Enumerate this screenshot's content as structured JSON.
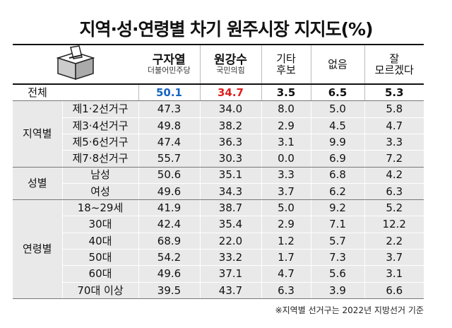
{
  "title": "지역·성·연령별 차기 원주시장 지지도(%)",
  "columns": [
    {
      "name": "구자열",
      "party": "더불어민주당"
    },
    {
      "name": "원강수",
      "party": "국민의힘"
    },
    {
      "lines": [
        "기타",
        "후보"
      ]
    },
    {
      "lines": [
        "없음"
      ]
    },
    {
      "lines": [
        "잘",
        "모르겠다"
      ]
    }
  ],
  "total": {
    "label": "전체",
    "values": [
      "50.1",
      "34.7",
      "3.5",
      "6.5",
      "5.3"
    ]
  },
  "groups": [
    {
      "label": "지역별",
      "rows": [
        {
          "label": "제1·2선거구",
          "values": [
            "47.3",
            "34.0",
            "8.0",
            "5.0",
            "5.8"
          ]
        },
        {
          "label": "제3·4선거구",
          "values": [
            "49.8",
            "38.2",
            "2.9",
            "4.5",
            "4.7"
          ]
        },
        {
          "label": "제5·6선거구",
          "values": [
            "47.4",
            "36.3",
            "3.1",
            "9.9",
            "3.3"
          ]
        },
        {
          "label": "제7·8선거구",
          "values": [
            "55.7",
            "30.3",
            "0.0",
            "6.9",
            "7.2"
          ]
        }
      ]
    },
    {
      "label": "성별",
      "rows": [
        {
          "label": "남성",
          "values": [
            "50.6",
            "35.1",
            "3.3",
            "6.8",
            "4.2"
          ]
        },
        {
          "label": "여성",
          "values": [
            "49.6",
            "34.3",
            "3.7",
            "6.2",
            "6.3"
          ]
        }
      ]
    },
    {
      "label": "연령별",
      "rows": [
        {
          "label": "18~29세",
          "values": [
            "41.9",
            "38.7",
            "5.0",
            "9.2",
            "5.2"
          ]
        },
        {
          "label": "30대",
          "values": [
            "42.4",
            "35.4",
            "2.9",
            "7.1",
            "12.2"
          ]
        },
        {
          "label": "40대",
          "values": [
            "68.9",
            "22.0",
            "1.2",
            "5.7",
            "2.2"
          ]
        },
        {
          "label": "50대",
          "values": [
            "54.2",
            "33.2",
            "1.7",
            "7.3",
            "3.7"
          ]
        },
        {
          "label": "60대",
          "values": [
            "49.6",
            "37.1",
            "4.7",
            "5.6",
            "3.1"
          ]
        },
        {
          "label": "70대 이상",
          "values": [
            "39.5",
            "43.7",
            "6.3",
            "3.9",
            "6.6"
          ]
        }
      ]
    }
  ],
  "note": "※지역별 선거구는 2022년 지방선거 기준"
}
